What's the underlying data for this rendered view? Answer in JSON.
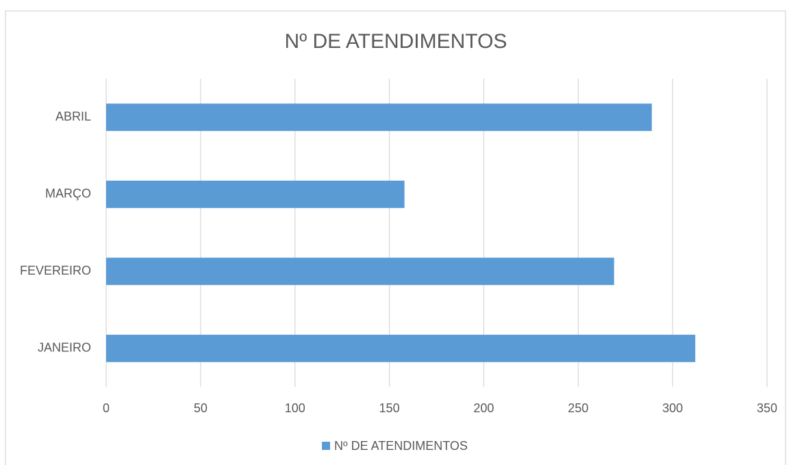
{
  "chart_data": {
    "type": "barh",
    "title": "Nº DE ATENDIMENTOS",
    "categories": [
      "JANEIRO",
      "FEVEREIRO",
      "MARÇO",
      "ABRIL"
    ],
    "series": [
      {
        "name": "Nº DE ATENDIMENTOS",
        "color": "#5b9bd5",
        "values": [
          312,
          269,
          158,
          289
        ]
      }
    ],
    "xlim": [
      0,
      350
    ],
    "xticks": [
      0,
      50,
      100,
      150,
      200,
      250,
      300,
      350
    ],
    "grid": true,
    "legend": "bottom"
  }
}
